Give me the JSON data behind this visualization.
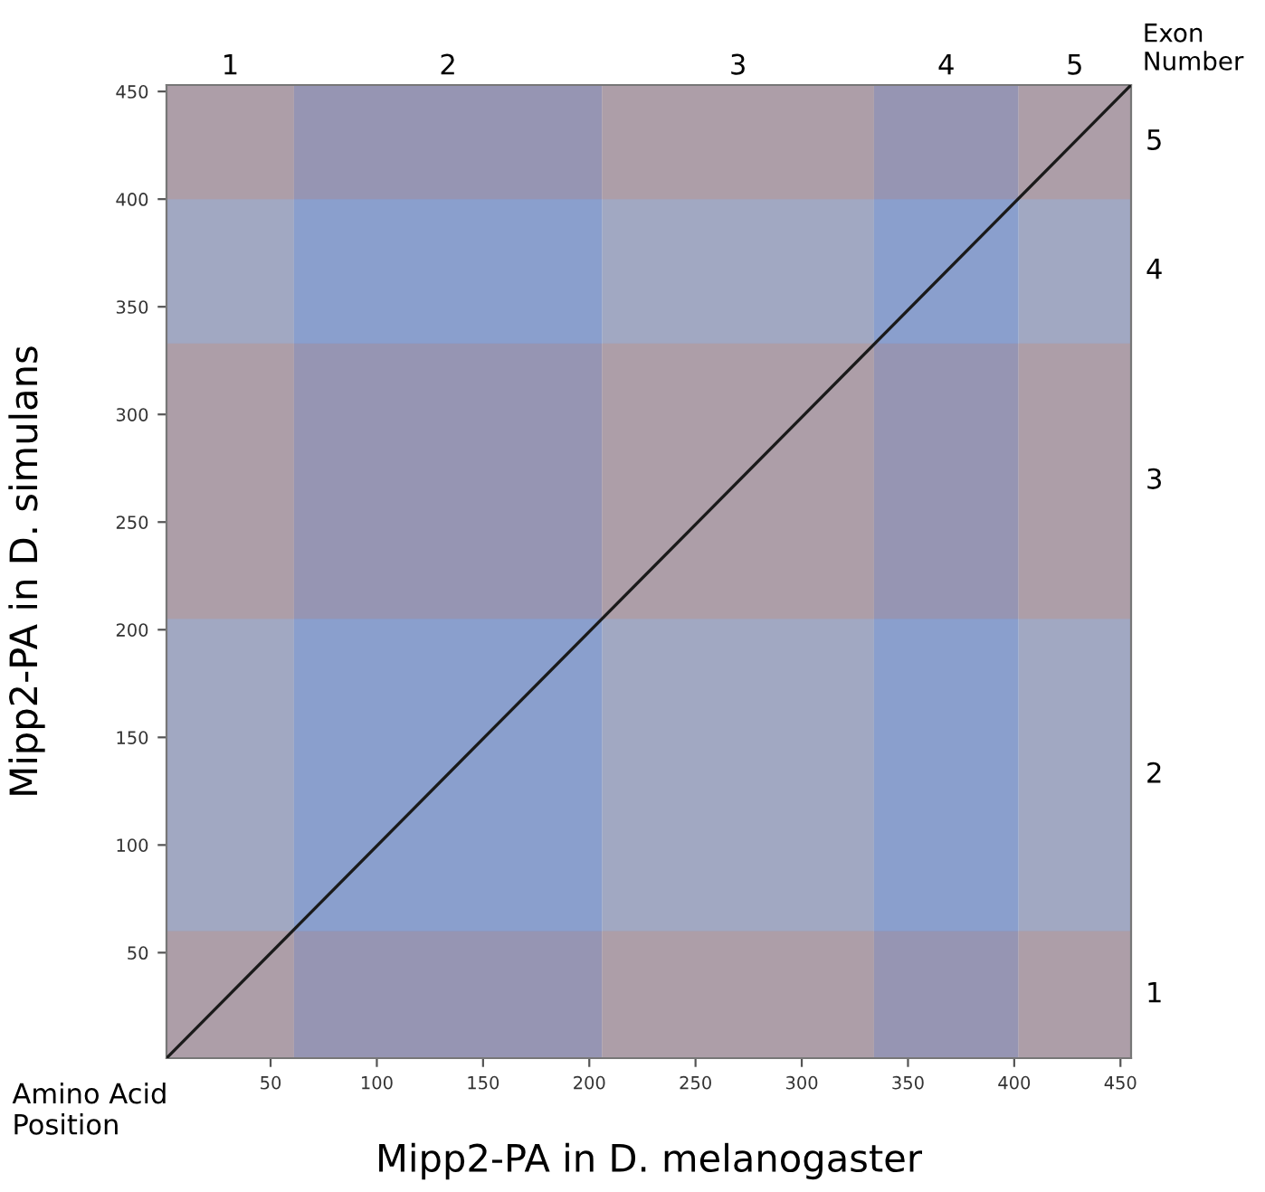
{
  "chart_data": {
    "type": "line",
    "xlabel": "Mipp2-PA in D. melanogaster",
    "ylabel": "Mipp2-PA in D. simulans",
    "annotations": [
      "Exon\nNumber",
      "Amino Acid\nPosition"
    ],
    "series": [
      {
        "x": [
          1,
          455
        ],
        "values": [
          1,
          453
        ],
        "color": "#1a1a1a"
      }
    ],
    "xlim": [
      1,
      455
    ],
    "ylim": [
      1,
      453
    ],
    "xticks": [
      50,
      100,
      150,
      200,
      250,
      300,
      350,
      400,
      450
    ],
    "yticks": [
      50,
      100,
      150,
      200,
      250,
      300,
      350,
      400,
      450
    ],
    "bands": [
      {
        "axis": "x",
        "from": 1,
        "to": 61,
        "label": "1",
        "color": "#ad9ea8"
      },
      {
        "axis": "x",
        "from": 61,
        "to": 206,
        "label": "2",
        "color": "#8890bb"
      },
      {
        "axis": "x",
        "from": 206,
        "to": 334,
        "label": "3",
        "color": "#ad9ea8"
      },
      {
        "axis": "x",
        "from": 334,
        "to": 402,
        "label": "4",
        "color": "#8890bb"
      },
      {
        "axis": "x",
        "from": 402,
        "to": 455,
        "label": "5",
        "color": "#ad9ea8"
      },
      {
        "axis": "y",
        "from": 1,
        "to": 60,
        "label": "1",
        "color": "#ad9ea8"
      },
      {
        "axis": "y",
        "from": 60,
        "to": 205,
        "label": "2",
        "color": "#8fb6e8"
      },
      {
        "axis": "y",
        "from": 205,
        "to": 333,
        "label": "3",
        "color": "#ad9ea8"
      },
      {
        "axis": "y",
        "from": 333,
        "to": 400,
        "label": "4",
        "color": "#8fb6e8"
      },
      {
        "axis": "y",
        "from": 400,
        "to": 453,
        "label": "5",
        "color": "#ad9ea8"
      }
    ],
    "grid": false,
    "marker": "none",
    "line_style": "solid"
  }
}
